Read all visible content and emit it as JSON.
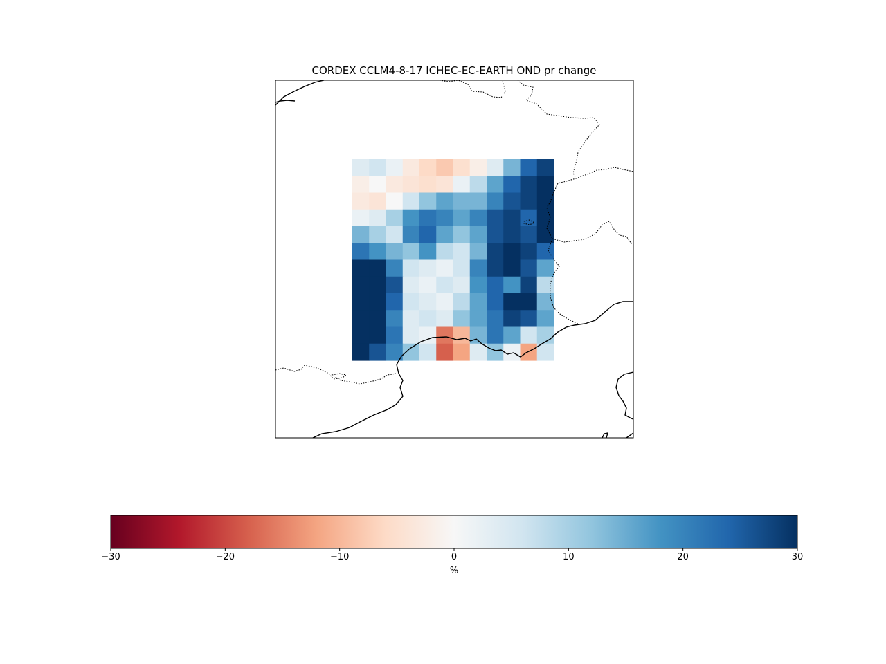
{
  "figure": {
    "title": "CORDEX CCLM4-8-17 ICHEC-EC-EARTH OND pr change"
  },
  "colorbar": {
    "label": "%",
    "min": -30,
    "max": 30,
    "ticks": [
      {
        "value": -30,
        "label": "−30"
      },
      {
        "value": -20,
        "label": "−20"
      },
      {
        "value": -10,
        "label": "−10"
      },
      {
        "value": 0,
        "label": "0"
      },
      {
        "value": 10,
        "label": "10"
      },
      {
        "value": 20,
        "label": "20"
      },
      {
        "value": 30,
        "label": "30"
      }
    ],
    "colormap": "RdBu",
    "colormap_stops": [
      "#67001f",
      "#b2182b",
      "#d6604d",
      "#f4a582",
      "#fddbc7",
      "#f7f7f7",
      "#d1e5f0",
      "#92c5de",
      "#4393c3",
      "#2166ac",
      "#053061"
    ]
  },
  "chart_data": {
    "type": "heatmap",
    "title": "CORDEX CCLM4-8-17 ICHEC-EC-EARTH OND pr change",
    "variable": "pr change",
    "unit": "%",
    "value_range": [
      -30,
      30
    ],
    "grid_rows": 12,
    "grid_cols": 12,
    "values": [
      [
        4,
        6,
        2,
        -3,
        -6,
        -8,
        -5,
        -2,
        4,
        14,
        24,
        28
      ],
      [
        -2,
        0,
        -3,
        -4,
        -5,
        -4,
        2,
        8,
        16,
        24,
        28,
        30
      ],
      [
        -3,
        -4,
        0,
        6,
        12,
        16,
        14,
        14,
        20,
        26,
        28,
        30
      ],
      [
        2,
        4,
        10,
        18,
        22,
        20,
        16,
        20,
        26,
        28,
        24,
        30
      ],
      [
        14,
        10,
        6,
        20,
        24,
        16,
        12,
        16,
        26,
        28,
        26,
        30
      ],
      [
        22,
        18,
        14,
        12,
        18,
        8,
        6,
        14,
        28,
        30,
        28,
        24
      ],
      [
        30,
        30,
        20,
        6,
        4,
        2,
        6,
        20,
        28,
        30,
        26,
        16
      ],
      [
        30,
        30,
        26,
        4,
        2,
        6,
        4,
        18,
        24,
        18,
        28,
        8
      ],
      [
        30,
        30,
        24,
        6,
        4,
        2,
        8,
        16,
        24,
        30,
        30,
        14
      ],
      [
        30,
        30,
        20,
        4,
        6,
        4,
        12,
        16,
        22,
        28,
        26,
        16
      ],
      [
        30,
        30,
        22,
        4,
        2,
        -16,
        -10,
        14,
        22,
        16,
        6,
        10
      ],
      [
        30,
        26,
        20,
        12,
        6,
        -18,
        -12,
        4,
        12,
        2,
        -12,
        6
      ]
    ]
  }
}
